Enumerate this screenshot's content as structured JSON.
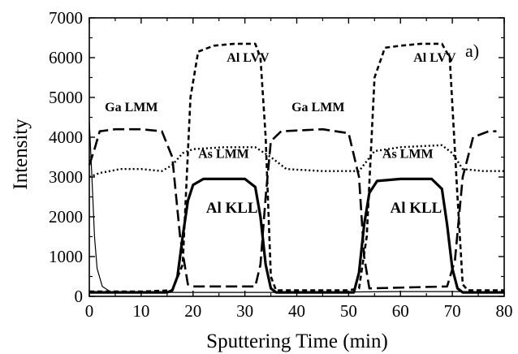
{
  "chart_data": {
    "type": "line",
    "xlabel": "Sputtering Time (min)",
    "ylabel": "Intensity",
    "xlim": [
      0,
      80
    ],
    "ylim": [
      0,
      7000
    ],
    "xticks": [
      "0",
      "10",
      "20",
      "30",
      "40",
      "50",
      "60",
      "70",
      "80"
    ],
    "yticks": [
      "0",
      "1000",
      "2000",
      "3000",
      "4000",
      "5000",
      "6000",
      "7000"
    ],
    "panel_label": "a)",
    "grid": false,
    "series": [
      {
        "name": "Al LVV",
        "style": "short-dash",
        "points": [
          [
            0,
            120
          ],
          [
            10,
            120
          ],
          [
            16,
            150
          ],
          [
            18,
            800
          ],
          [
            19.5,
            5000
          ],
          [
            21,
            6150
          ],
          [
            24,
            6300
          ],
          [
            28,
            6350
          ],
          [
            32,
            6350
          ],
          [
            33,
            6000
          ],
          [
            34,
            4000
          ],
          [
            35,
            500
          ],
          [
            36,
            150
          ],
          [
            50,
            150
          ],
          [
            52,
            200
          ],
          [
            53.5,
            1500
          ],
          [
            55,
            5500
          ],
          [
            57,
            6250
          ],
          [
            60,
            6300
          ],
          [
            64,
            6350
          ],
          [
            68,
            6350
          ],
          [
            69.5,
            6000
          ],
          [
            71,
            2500
          ],
          [
            72,
            300
          ],
          [
            73,
            150
          ],
          [
            80,
            150
          ]
        ],
        "labels": [
          {
            "text": "Al LVV",
            "x": 26.5,
            "y": 5900
          },
          {
            "text": "Al LVV",
            "x": 62.5,
            "y": 5900
          }
        ]
      },
      {
        "name": "Ga LMM",
        "style": "long-dash",
        "points": [
          [
            0,
            3300
          ],
          [
            1,
            3700
          ],
          [
            2,
            4150
          ],
          [
            5,
            4200
          ],
          [
            10,
            4200
          ],
          [
            14,
            4150
          ],
          [
            16,
            3500
          ],
          [
            17.5,
            1500
          ],
          [
            19,
            300
          ],
          [
            20,
            250
          ],
          [
            32,
            250
          ],
          [
            33,
            800
          ],
          [
            34,
            2500
          ],
          [
            35,
            3900
          ],
          [
            37,
            4150
          ],
          [
            45,
            4200
          ],
          [
            50,
            4100
          ],
          [
            52,
            3000
          ],
          [
            53,
            1000
          ],
          [
            54,
            200
          ],
          [
            69,
            250
          ],
          [
            70.5,
            900
          ],
          [
            72,
            3000
          ],
          [
            74,
            4000
          ],
          [
            77,
            4150
          ],
          [
            78.5,
            4150
          ]
        ],
        "labels": [
          {
            "text": "Ga LMM",
            "x": 3,
            "y": 4650
          },
          {
            "text": "Ga LMM",
            "x": 39,
            "y": 4650
          }
        ]
      },
      {
        "name": "As LMM",
        "style": "dotted",
        "points": [
          [
            0,
            3000
          ],
          [
            2,
            3100
          ],
          [
            6,
            3200
          ],
          [
            10,
            3200
          ],
          [
            14,
            3150
          ],
          [
            16,
            3300
          ],
          [
            18,
            3600
          ],
          [
            20,
            3700
          ],
          [
            26,
            3750
          ],
          [
            32,
            3750
          ],
          [
            35,
            3500
          ],
          [
            38,
            3200
          ],
          [
            45,
            3150
          ],
          [
            52,
            3150
          ],
          [
            55,
            3650
          ],
          [
            60,
            3750
          ],
          [
            68,
            3800
          ],
          [
            70,
            3600
          ],
          [
            72,
            3200
          ],
          [
            76,
            3150
          ],
          [
            80,
            3150
          ]
        ],
        "labels": [
          {
            "text": "As LMM",
            "x": 21,
            "y": 3480
          },
          {
            "text": "As LMM",
            "x": 56.5,
            "y": 3480
          }
        ]
      },
      {
        "name": "Al KLL",
        "style": "solid-thick",
        "points": [
          [
            0,
            100
          ],
          [
            15,
            100
          ],
          [
            16,
            150
          ],
          [
            17,
            500
          ],
          [
            18,
            1500
          ],
          [
            19,
            2400
          ],
          [
            20,
            2800
          ],
          [
            22,
            2950
          ],
          [
            26,
            2950
          ],
          [
            30,
            2950
          ],
          [
            32,
            2750
          ],
          [
            33,
            2000
          ],
          [
            34,
            800
          ],
          [
            35,
            200
          ],
          [
            36,
            100
          ],
          [
            51,
            100
          ],
          [
            52,
            600
          ],
          [
            53,
            1800
          ],
          [
            54,
            2600
          ],
          [
            55.5,
            2900
          ],
          [
            60,
            2950
          ],
          [
            66,
            2950
          ],
          [
            68,
            2700
          ],
          [
            69,
            1800
          ],
          [
            70,
            700
          ],
          [
            71,
            200
          ],
          [
            72,
            100
          ],
          [
            80,
            100
          ]
        ],
        "labels": [
          {
            "text": "Al KLL",
            "x": 22.5,
            "y": 2100
          },
          {
            "text": "Al KLL",
            "x": 58,
            "y": 2100
          }
        ]
      },
      {
        "name": "",
        "style": "solid-thin",
        "points": [
          [
            0,
            4400
          ],
          [
            0.5,
            3000
          ],
          [
            1,
            1500
          ],
          [
            1.5,
            700
          ],
          [
            2.5,
            250
          ],
          [
            4,
            120
          ],
          [
            10,
            100
          ],
          [
            20,
            100
          ],
          [
            40,
            100
          ],
          [
            60,
            120
          ],
          [
            80,
            120
          ]
        ],
        "labels": []
      }
    ]
  }
}
